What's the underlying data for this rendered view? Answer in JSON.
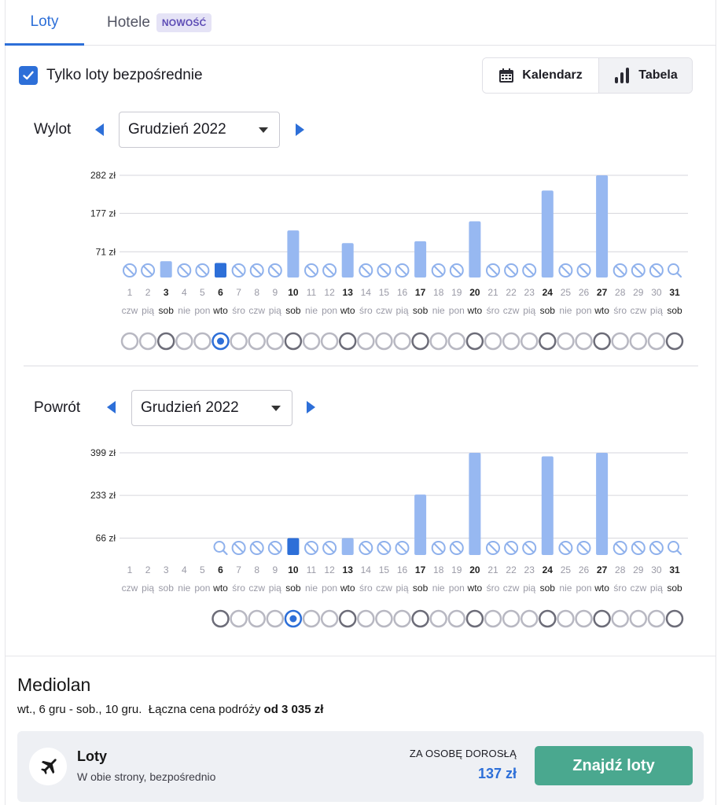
{
  "tabs": [
    {
      "label": "Loty"
    },
    {
      "label": "Hotele",
      "badge": "NOWOŚĆ"
    }
  ],
  "filter": {
    "direct_label": "Tylko loty bezpośrednie",
    "checked": true
  },
  "view_toggle": {
    "calendar_label": "Kalendarz",
    "table_label": "Tabela",
    "active": "table"
  },
  "departure": {
    "label": "Wylot",
    "month": "Grudzień 2022",
    "selected_day": 6
  },
  "return": {
    "label": "Powrót",
    "month": "Grudzień 2022",
    "selected_day": 10
  },
  "summary": {
    "city": "Mediolan",
    "dates": "wt., 6 gru - sob., 10 gru.",
    "total_prefix": "Łączna cena podróży",
    "total_price": "od 3 035 zł"
  },
  "flight_card": {
    "title": "Loty",
    "subtitle": "W obie strony, bezpośrednio",
    "per_person_label": "ZA OSOBĘ DOROSŁĄ",
    "price": "137 zł",
    "button_label": "Znajdź loty"
  },
  "colors": {
    "accent": "#2d6fd8",
    "bar": "#97b8f1",
    "bar_selected": "#2d6fd8",
    "button": "#4aa88f"
  },
  "chart_data": [
    {
      "type": "bar",
      "name": "Wylot",
      "ticks": [
        "282 zł",
        "177 zł",
        "71 zł"
      ],
      "tick_values": [
        282,
        177,
        71
      ],
      "days": [
        "1",
        "2",
        "3",
        "4",
        "5",
        "6",
        "7",
        "8",
        "9",
        "10",
        "11",
        "12",
        "13",
        "14",
        "15",
        "16",
        "17",
        "18",
        "19",
        "20",
        "21",
        "22",
        "23",
        "24",
        "25",
        "26",
        "27",
        "28",
        "29",
        "30",
        "31"
      ],
      "weekdays": [
        "czw",
        "pią",
        "sob",
        "nie",
        "pon",
        "wto",
        "śro",
        "czw",
        "pią",
        "sob",
        "nie",
        "pon",
        "wto",
        "śro",
        "czw",
        "pią",
        "sob",
        "nie",
        "pon",
        "wto",
        "śro",
        "czw",
        "pią",
        "sob",
        "nie",
        "pon",
        "wto",
        "śro",
        "czw",
        "pią",
        "sob"
      ],
      "values": [
        null,
        null,
        45,
        null,
        null,
        40,
        null,
        null,
        null,
        130,
        null,
        null,
        95,
        null,
        null,
        null,
        100,
        null,
        null,
        155,
        null,
        null,
        null,
        240,
        null,
        null,
        282,
        null,
        null,
        null,
        null
      ],
      "bold_days": [
        3,
        6,
        10,
        13,
        17,
        20,
        24,
        27,
        31
      ],
      "search_days": [
        31
      ],
      "selected": 6
    },
    {
      "type": "bar",
      "name": "Powrót",
      "ticks": [
        "399 zł",
        "233 zł",
        "66 zł"
      ],
      "tick_values": [
        399,
        233,
        66
      ],
      "days": [
        "1",
        "2",
        "3",
        "4",
        "5",
        "6",
        "7",
        "8",
        "9",
        "10",
        "11",
        "12",
        "13",
        "14",
        "15",
        "16",
        "17",
        "18",
        "19",
        "20",
        "21",
        "22",
        "23",
        "24",
        "25",
        "26",
        "27",
        "28",
        "29",
        "30",
        "31"
      ],
      "weekdays": [
        "czw",
        "pią",
        "sob",
        "nie",
        "pon",
        "wto",
        "śro",
        "czw",
        "pią",
        "sob",
        "nie",
        "pon",
        "wto",
        "śro",
        "czw",
        "pią",
        "sob",
        "nie",
        "pon",
        "wto",
        "śro",
        "czw",
        "pią",
        "sob",
        "nie",
        "pon",
        "wto",
        "śro",
        "czw",
        "pią",
        "sob"
      ],
      "values": [
        null,
        null,
        null,
        null,
        null,
        null,
        null,
        null,
        null,
        66,
        null,
        null,
        66,
        null,
        null,
        null,
        236,
        null,
        null,
        399,
        null,
        null,
        null,
        385,
        null,
        null,
        399,
        null,
        null,
        null,
        null
      ],
      "bold_days": [
        6,
        10,
        13,
        17,
        20,
        24,
        27,
        31
      ],
      "search_days": [
        6,
        31
      ],
      "first_day": 6,
      "selected": 10
    }
  ]
}
